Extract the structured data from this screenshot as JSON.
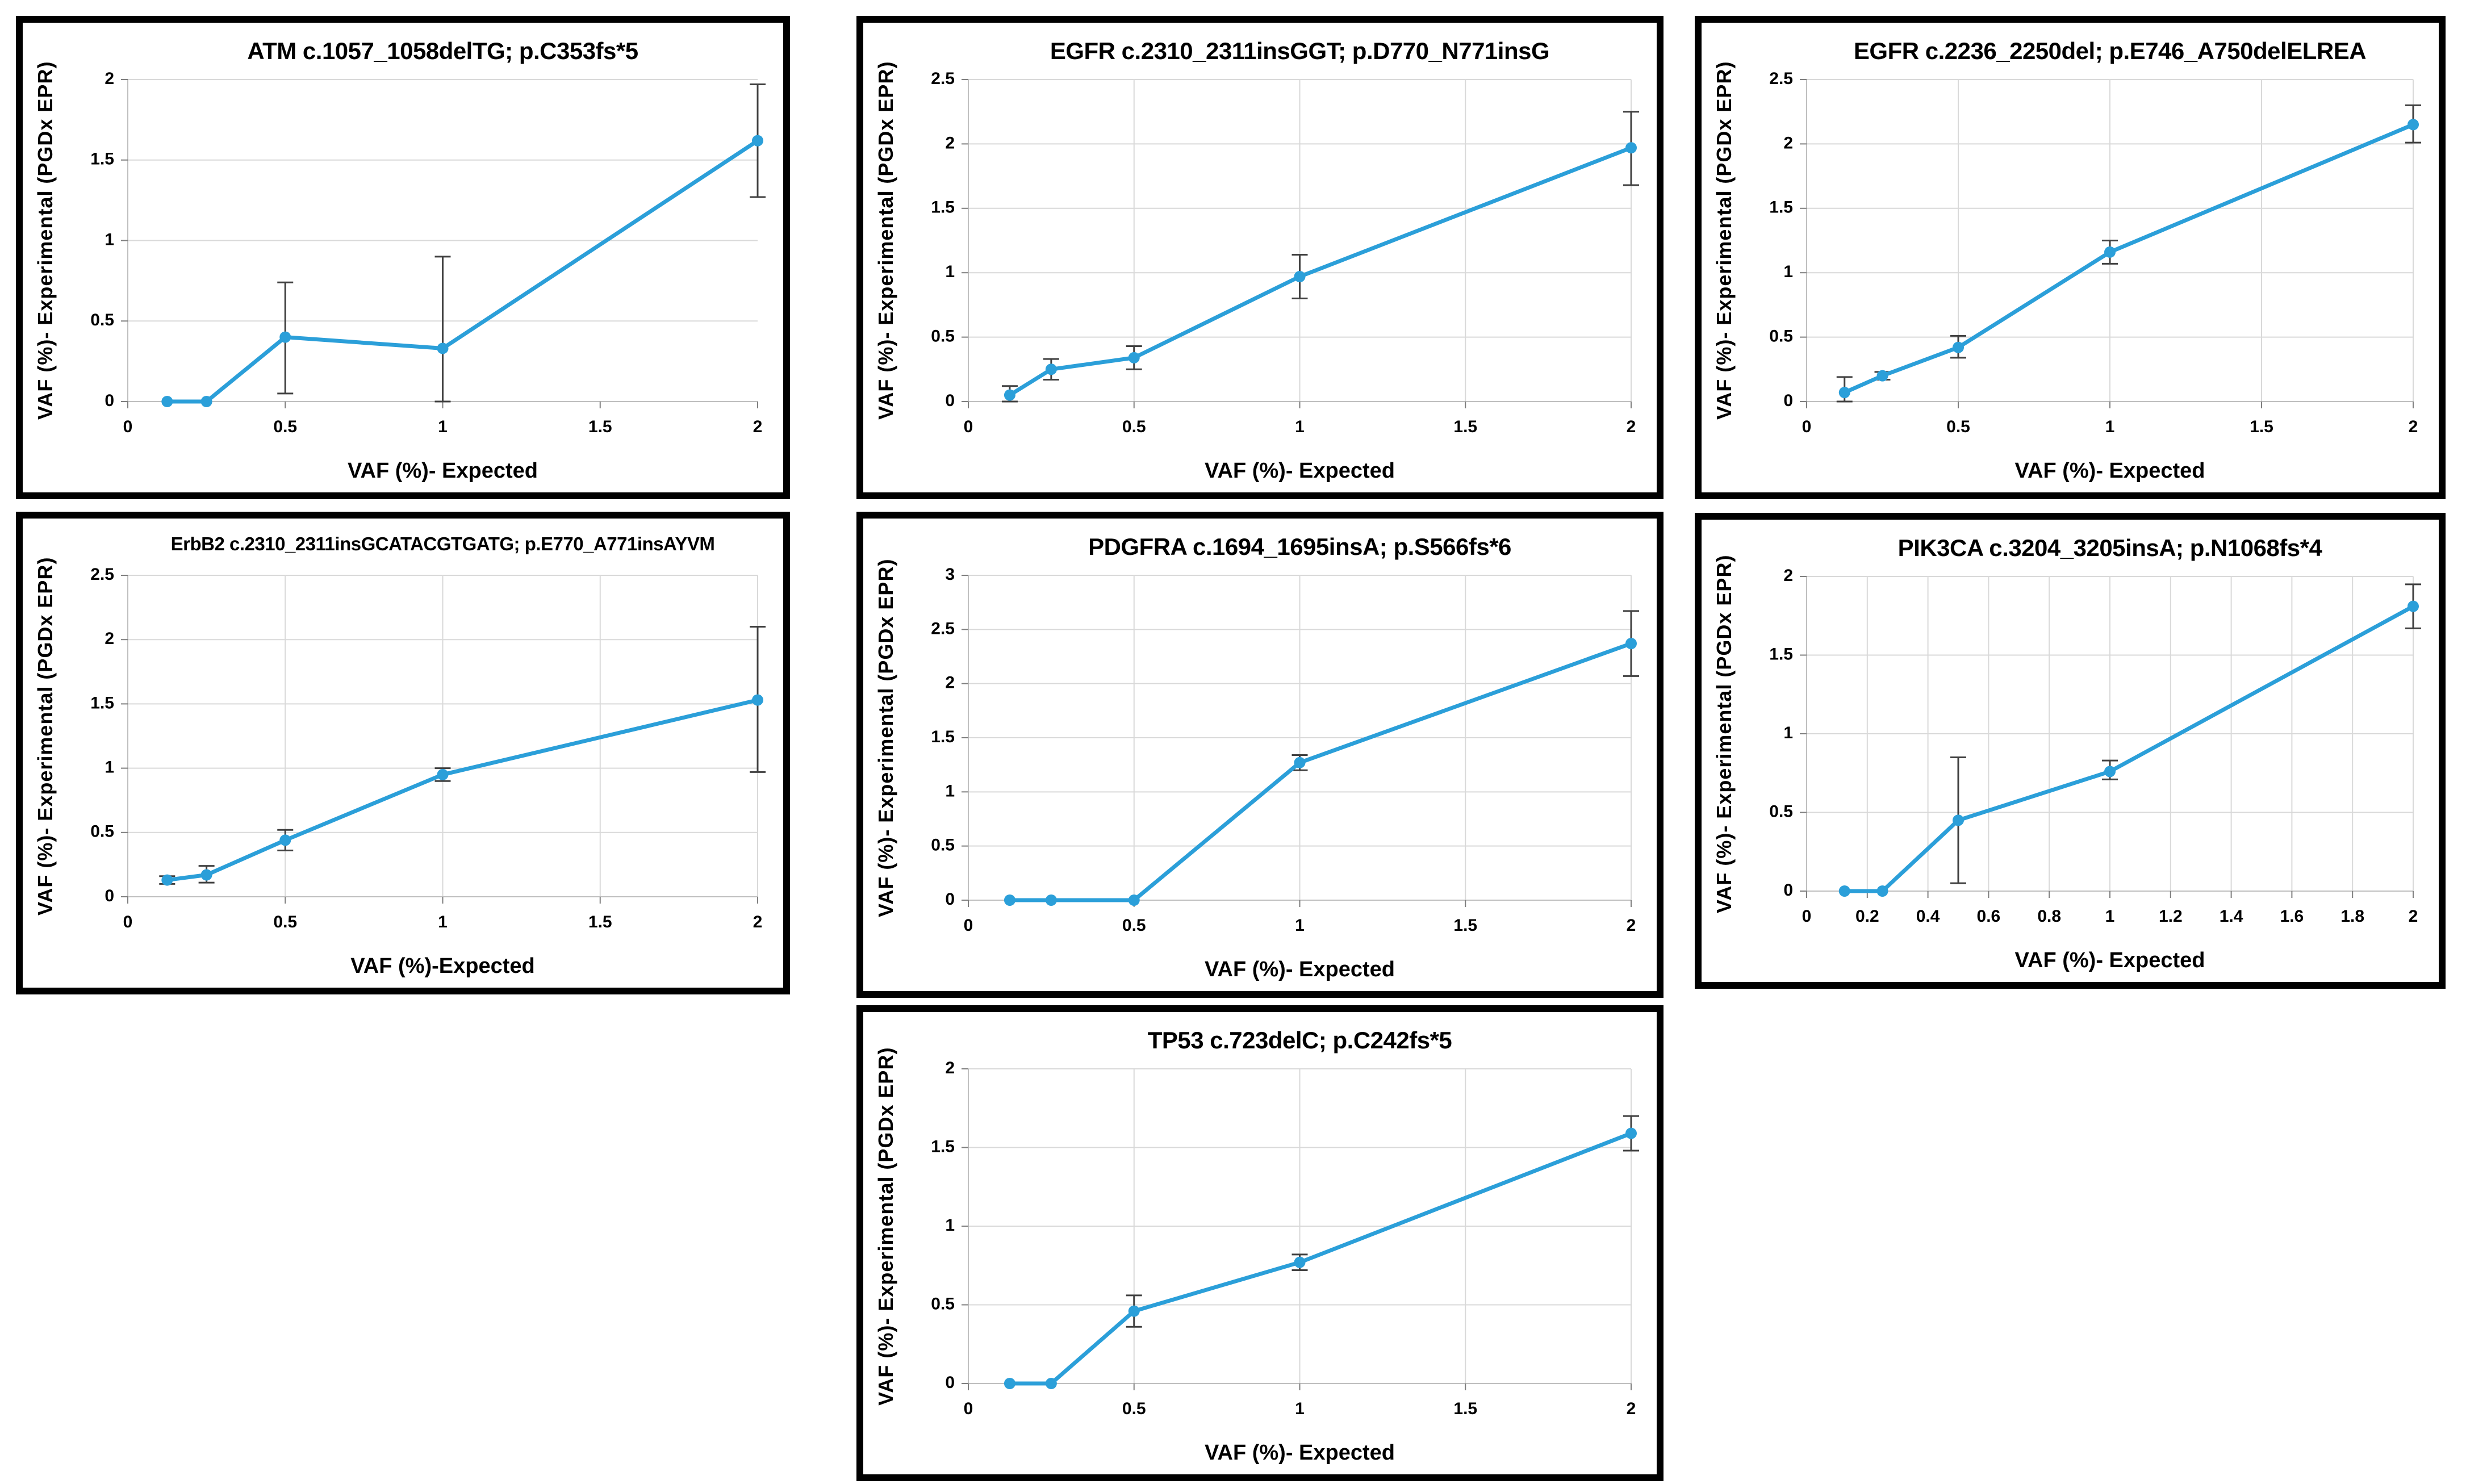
{
  "figure": {
    "background": "#ffffff",
    "panel_border_color": "#000000",
    "num_panels": 7
  },
  "colors": {
    "line": "#2B9FD9",
    "marker": "#2B9FD9",
    "error_bar": "#404040",
    "gridline": "#D9D9D9",
    "axis_line": "#BFBFBF",
    "tick_mark": "#7F7F7F",
    "text": "#000000"
  },
  "chart_data": [
    {
      "type": "line",
      "title": "ATM c.1057_1058delTG; p.C353fs*5",
      "xlabel": "VAF (%)- Expected",
      "ylabel": "VAF (%)- Experimental (PGDx EPR)",
      "x": [
        0.125,
        0.25,
        0.5,
        1,
        2
      ],
      "y": [
        0.0,
        0.0,
        0.4,
        0.33,
        1.62
      ],
      "err_low": [
        0.0,
        0.0,
        0.05,
        0.0,
        1.27
      ],
      "err_high": [
        0.0,
        0.0,
        0.74,
        0.9,
        1.97
      ],
      "xlim": [
        0,
        2
      ],
      "ylim": [
        0,
        2
      ],
      "xticks": [
        0,
        0.5,
        1,
        1.5,
        2
      ],
      "yticks": [
        0,
        0.5,
        1,
        1.5,
        2
      ],
      "vertical_gridlines": false,
      "legend": "none"
    },
    {
      "type": "line",
      "title": "EGFR c.2310_2311insGGT; p.D770_N771insG",
      "xlabel": "VAF (%)- Expected",
      "ylabel": "VAF (%)- Experimental (PGDx EPR)",
      "x": [
        0.125,
        0.25,
        0.5,
        1,
        2
      ],
      "y": [
        0.05,
        0.25,
        0.34,
        0.97,
        1.97
      ],
      "err_low": [
        0.0,
        0.17,
        0.25,
        0.8,
        1.68
      ],
      "err_high": [
        0.12,
        0.33,
        0.43,
        1.14,
        2.25
      ],
      "xlim": [
        0,
        2
      ],
      "ylim": [
        0,
        2.5
      ],
      "xticks": [
        0,
        0.5,
        1,
        1.5,
        2
      ],
      "yticks": [
        0,
        0.5,
        1,
        1.5,
        2,
        2.5
      ],
      "vertical_gridlines": true,
      "legend": "none"
    },
    {
      "type": "line",
      "title": "EGFR c.2236_2250del; p.E746_A750delELREA",
      "xlabel": "VAF (%)- Expected",
      "ylabel": "VAF (%)- Experimental (PGDx EPR)",
      "x": [
        0.125,
        0.25,
        0.5,
        1,
        2
      ],
      "y": [
        0.07,
        0.2,
        0.42,
        1.16,
        2.15
      ],
      "err_low": [
        0.0,
        0.17,
        0.34,
        1.07,
        2.01
      ],
      "err_high": [
        0.19,
        0.23,
        0.51,
        1.25,
        2.3
      ],
      "xlim": [
        0,
        2
      ],
      "ylim": [
        0,
        2.5
      ],
      "xticks": [
        0,
        0.5,
        1,
        1.5,
        2
      ],
      "yticks": [
        0,
        0.5,
        1,
        1.5,
        2,
        2.5
      ],
      "vertical_gridlines": true,
      "legend": "none"
    },
    {
      "type": "line",
      "title": "ErbB2 c.2310_2311insGCATACGTGATG; p.E770_A771insAYVM",
      "xlabel": "VAF (%)-Expected",
      "ylabel": "VAF (%)- Experimental (PGDx EPR)",
      "x": [
        0.125,
        0.25,
        0.5,
        1,
        2
      ],
      "y": [
        0.13,
        0.17,
        0.44,
        0.95,
        1.53
      ],
      "err_low": [
        0.1,
        0.11,
        0.36,
        0.9,
        0.97
      ],
      "err_high": [
        0.16,
        0.24,
        0.52,
        1.0,
        2.1
      ],
      "xlim": [
        0,
        2
      ],
      "ylim": [
        0,
        2.5
      ],
      "xticks": [
        0,
        0.5,
        1,
        1.5,
        2
      ],
      "yticks": [
        0,
        0.5,
        1,
        1.5,
        2,
        2.5
      ],
      "vertical_gridlines": true,
      "legend": "none"
    },
    {
      "type": "line",
      "title": "PDGFRA c.1694_1695insA; p.S566fs*6",
      "xlabel": "VAF (%)- Expected",
      "ylabel": "VAF (%)- Experimental (PGDx EPR)",
      "x": [
        0.125,
        0.25,
        0.5,
        1,
        2
      ],
      "y": [
        0.0,
        0.0,
        0.0,
        1.27,
        2.37
      ],
      "err_low": [
        0.0,
        0.0,
        0.0,
        1.2,
        2.07
      ],
      "err_high": [
        0.0,
        0.0,
        0.0,
        1.34,
        2.67
      ],
      "xlim": [
        0,
        2
      ],
      "ylim": [
        0,
        3
      ],
      "xticks": [
        0,
        0.5,
        1,
        1.5,
        2
      ],
      "yticks": [
        0,
        0.5,
        1,
        1.5,
        2,
        2.5,
        3
      ],
      "vertical_gridlines": true,
      "legend": "none"
    },
    {
      "type": "line",
      "title": "PIK3CA c.3204_3205insA; p.N1068fs*4",
      "xlabel": "VAF (%)- Expected",
      "ylabel": "VAF (%)- Experimental (PGDx EPR)",
      "x": [
        0.125,
        0.25,
        0.5,
        1,
        2
      ],
      "y": [
        0.0,
        0.0,
        0.45,
        0.76,
        1.81
      ],
      "err_low": [
        0.0,
        0.0,
        0.05,
        0.71,
        1.67
      ],
      "err_high": [
        0.0,
        0.0,
        0.85,
        0.83,
        1.95
      ],
      "xlim": [
        0,
        2
      ],
      "ylim": [
        0,
        2
      ],
      "xticks": [
        0,
        0.2,
        0.4,
        0.6,
        0.8,
        1,
        1.2,
        1.4,
        1.6,
        1.8,
        2
      ],
      "yticks": [
        0,
        0.5,
        1,
        1.5,
        2
      ],
      "vertical_gridlines": true,
      "legend": "none"
    },
    {
      "type": "line",
      "title": "TP53 c.723delC; p.C242fs*5",
      "xlabel": "VAF (%)- Expected",
      "ylabel": "VAF (%)- Experimental (PGDx EPR)",
      "x": [
        0.125,
        0.25,
        0.5,
        1,
        2
      ],
      "y": [
        0.0,
        0.0,
        0.46,
        0.77,
        1.59
      ],
      "err_low": [
        0.0,
        0.0,
        0.36,
        0.72,
        1.48
      ],
      "err_high": [
        0.0,
        0.0,
        0.56,
        0.82,
        1.7
      ],
      "xlim": [
        0,
        2
      ],
      "ylim": [
        0,
        2
      ],
      "xticks": [
        0,
        0.5,
        1,
        1.5,
        2
      ],
      "yticks": [
        0,
        0.5,
        1,
        1.5,
        2
      ],
      "vertical_gridlines": true,
      "legend": "none"
    }
  ]
}
